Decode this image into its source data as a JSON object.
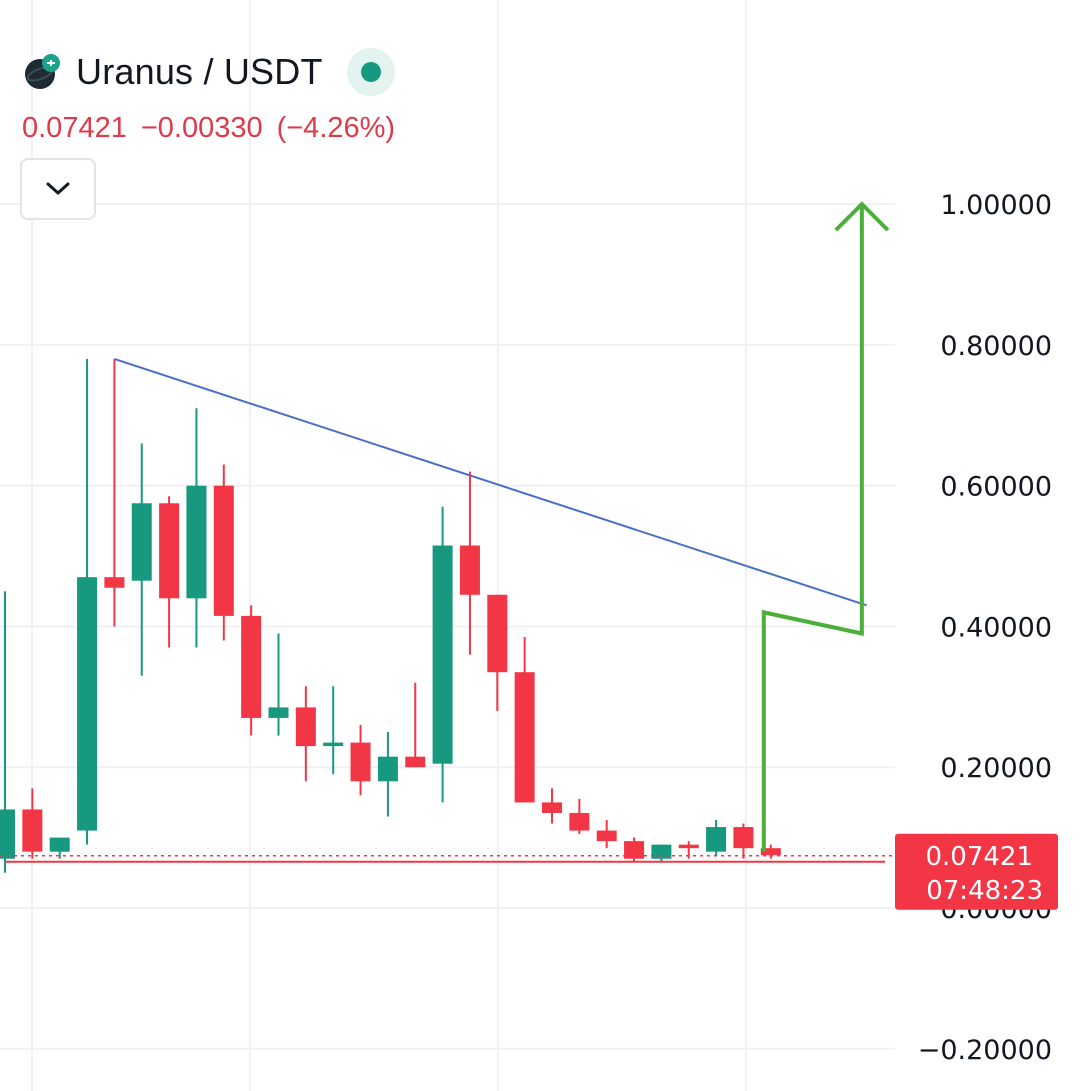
{
  "header": {
    "pair": "Uranus / USDT",
    "last_price": "0.07421",
    "change": "−0.00330",
    "change_pct": "(−4.26%)"
  },
  "colors": {
    "up": "#16997f",
    "down": "#f23645",
    "trendline": "#4a6fc7",
    "projection": "#4caf3a",
    "grid": "#f0f1f4"
  },
  "icons": {
    "toggle": "chevron-down-icon",
    "logo": "uranus-coin-icon",
    "status": "live-status-icon"
  },
  "chart_data": {
    "type": "candlestick",
    "title": "Uranus / USDT",
    "ylim": [
      -0.26,
      1.29
    ],
    "yticks": [
      "1.00000",
      "0.80000",
      "0.60000",
      "0.40000",
      "0.20000",
      "0.00000",
      "−0.20000"
    ],
    "ytick_values": [
      1.0,
      0.8,
      0.6,
      0.4,
      0.2,
      0.0,
      -0.2
    ],
    "grid": true,
    "candles": [
      {
        "o": 0.07,
        "h": 0.45,
        "l": 0.05,
        "c": 0.14
      },
      {
        "o": 0.14,
        "h": 0.17,
        "l": 0.07,
        "c": 0.08
      },
      {
        "o": 0.08,
        "h": 0.1,
        "l": 0.07,
        "c": 0.1
      },
      {
        "o": 0.11,
        "h": 0.78,
        "l": 0.09,
        "c": 0.47
      },
      {
        "o": 0.47,
        "h": 0.78,
        "l": 0.4,
        "c": 0.455
      },
      {
        "o": 0.465,
        "h": 0.66,
        "l": 0.33,
        "c": 0.575
      },
      {
        "o": 0.575,
        "h": 0.585,
        "l": 0.37,
        "c": 0.44
      },
      {
        "o": 0.44,
        "h": 0.71,
        "l": 0.37,
        "c": 0.6
      },
      {
        "o": 0.6,
        "h": 0.63,
        "l": 0.38,
        "c": 0.415
      },
      {
        "o": 0.415,
        "h": 0.43,
        "l": 0.245,
        "c": 0.27
      },
      {
        "o": 0.27,
        "h": 0.39,
        "l": 0.245,
        "c": 0.285
      },
      {
        "o": 0.285,
        "h": 0.315,
        "l": 0.18,
        "c": 0.23
      },
      {
        "o": 0.23,
        "h": 0.315,
        "l": 0.19,
        "c": 0.235
      },
      {
        "o": 0.235,
        "h": 0.26,
        "l": 0.16,
        "c": 0.18
      },
      {
        "o": 0.18,
        "h": 0.25,
        "l": 0.13,
        "c": 0.215
      },
      {
        "o": 0.215,
        "h": 0.32,
        "l": 0.2,
        "c": 0.2
      },
      {
        "o": 0.205,
        "h": 0.57,
        "l": 0.15,
        "c": 0.515
      },
      {
        "o": 0.515,
        "h": 0.62,
        "l": 0.36,
        "c": 0.445
      },
      {
        "o": 0.445,
        "h": 0.445,
        "l": 0.28,
        "c": 0.335
      },
      {
        "o": 0.335,
        "h": 0.385,
        "l": 0.15,
        "c": 0.15
      },
      {
        "o": 0.15,
        "h": 0.17,
        "l": 0.12,
        "c": 0.135
      },
      {
        "o": 0.135,
        "h": 0.155,
        "l": 0.105,
        "c": 0.11
      },
      {
        "o": 0.11,
        "h": 0.125,
        "l": 0.085,
        "c": 0.095
      },
      {
        "o": 0.095,
        "h": 0.1,
        "l": 0.065,
        "c": 0.07
      },
      {
        "o": 0.07,
        "h": 0.09,
        "l": 0.065,
        "c": 0.09
      },
      {
        "o": 0.09,
        "h": 0.095,
        "l": 0.07,
        "c": 0.085
      },
      {
        "o": 0.08,
        "h": 0.125,
        "l": 0.075,
        "c": 0.115
      },
      {
        "o": 0.115,
        "h": 0.12,
        "l": 0.07,
        "c": 0.085
      },
      {
        "o": 0.085,
        "h": 0.09,
        "l": 0.07,
        "c": 0.075
      }
    ],
    "trendline": {
      "from": {
        "candle": 4,
        "price": 0.78
      },
      "to": {
        "candle": 31.5,
        "price": 0.43
      }
    },
    "projection_path": [
      {
        "candle": 28,
        "price": 0.08
      },
      {
        "candle": 28,
        "price": 0.42
      },
      {
        "candle": 31,
        "price": 0.39
      },
      {
        "candle": 31,
        "price": 1.0
      }
    ],
    "current_price": 0.07421,
    "price_label": "0.07421",
    "countdown": "07:48:23"
  }
}
